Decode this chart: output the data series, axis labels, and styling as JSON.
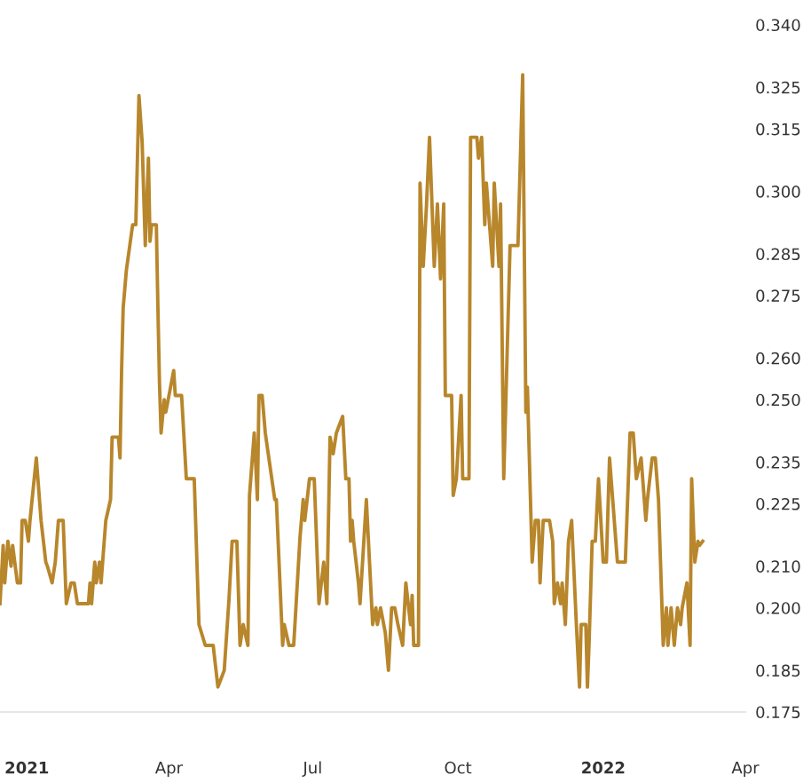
{
  "chart_data": {
    "type": "line",
    "color": "#b8862b",
    "grid": false,
    "marker": "none",
    "line_style": "solid",
    "x": [
      "2020-12-15",
      "2020-12-17",
      "2020-12-18",
      "2020-12-20",
      "2020-12-22",
      "2020-12-23",
      "2020-12-26",
      "2020-12-28",
      "2020-12-29",
      "2020-12-31",
      "2021-01-02",
      "2021-01-03",
      "2021-01-07",
      "2021-01-10",
      "2021-01-13",
      "2021-01-14",
      "2021-01-17",
      "2021-01-19",
      "2021-01-21",
      "2021-01-24",
      "2021-01-26",
      "2021-01-29",
      "2021-01-31",
      "2021-02-02",
      "2021-02-09",
      "2021-02-10",
      "2021-02-11",
      "2021-02-13",
      "2021-02-14",
      "2021-02-16",
      "2021-02-17",
      "2021-02-20",
      "2021-02-23",
      "2021-02-24",
      "2021-02-28",
      "2021-03-01",
      "2021-03-02",
      "2021-03-03",
      "2021-03-05",
      "2021-03-09",
      "2021-03-11",
      "2021-03-13",
      "2021-03-15",
      "2021-03-17",
      "2021-03-19",
      "2021-03-20",
      "2021-03-21",
      "2021-03-24",
      "2021-03-25",
      "2021-03-26",
      "2021-03-27",
      "2021-03-29",
      "2021-03-30",
      "2021-04-01",
      "2021-04-04",
      "2021-04-05",
      "2021-04-09",
      "2021-04-12",
      "2021-04-17",
      "2021-04-20",
      "2021-04-24",
      "2021-04-29",
      "2021-05-02",
      "2021-05-06",
      "2021-05-09",
      "2021-05-11",
      "2021-05-14",
      "2021-05-16",
      "2021-05-18",
      "2021-05-21",
      "2021-05-22",
      "2021-05-25",
      "2021-05-27",
      "2021-05-28",
      "2021-05-30",
      "2021-06-01",
      "2021-06-07",
      "2021-06-08",
      "2021-06-12",
      "2021-06-13",
      "2021-06-16",
      "2021-06-19",
      "2021-06-23",
      "2021-06-25",
      "2021-06-26",
      "2021-06-29",
      "2021-07-02",
      "2021-07-05",
      "2021-07-08",
      "2021-07-10",
      "2021-07-12",
      "2021-07-14",
      "2021-07-16",
      "2021-07-20",
      "2021-07-22",
      "2021-07-24",
      "2021-07-25",
      "2021-07-26",
      "2021-07-27",
      "2021-07-30",
      "2021-07-31",
      "2021-08-04",
      "2021-08-06",
      "2021-08-08",
      "2021-08-10",
      "2021-08-11",
      "2021-08-13",
      "2021-08-16",
      "2021-08-18",
      "2021-08-20",
      "2021-08-22",
      "2021-08-24",
      "2021-08-27",
      "2021-08-29",
      "2021-09-01",
      "2021-09-02",
      "2021-09-03",
      "2021-09-06",
      "2021-09-07",
      "2021-09-09",
      "2021-09-11",
      "2021-09-13",
      "2021-09-16",
      "2021-09-18",
      "2021-09-20",
      "2021-09-22",
      "2021-09-23",
      "2021-09-27",
      "2021-09-28",
      "2021-09-30",
      "2021-10-03",
      "2021-10-04",
      "2021-10-06",
      "2021-10-08",
      "2021-10-09",
      "2021-10-13",
      "2021-10-14",
      "2021-10-16",
      "2021-10-18",
      "2021-10-19",
      "2021-10-21",
      "2021-10-23",
      "2021-10-24",
      "2021-10-27",
      "2021-10-28",
      "2021-10-30",
      "2021-11-03",
      "2021-11-08",
      "2021-11-11",
      "2021-11-13",
      "2021-11-14",
      "2021-11-17",
      "2021-11-19",
      "2021-11-21",
      "2021-11-22",
      "2021-11-24",
      "2021-11-28",
      "2021-11-30",
      "2021-12-01",
      "2021-12-03",
      "2021-12-05",
      "2021-12-06",
      "2021-12-08",
      "2021-12-10",
      "2021-12-12",
      "2021-12-15",
      "2021-12-17",
      "2021-12-18",
      "2021-12-21",
      "2021-12-22",
      "2021-12-23",
      "2021-12-25",
      "2021-12-27",
      "2021-12-29",
      "2022-01-01",
      "2022-01-03",
      "2022-01-05",
      "2022-01-07",
      "2022-01-10",
      "2022-01-15",
      "2022-01-18",
      "2022-01-20",
      "2022-01-22",
      "2022-01-25",
      "2022-01-28",
      "2022-01-29",
      "2022-02-01",
      "2022-02-03",
      "2022-02-05",
      "2022-02-08",
      "2022-02-10",
      "2022-02-11",
      "2022-02-13",
      "2022-02-15",
      "2022-02-17",
      "2022-02-19",
      "2022-02-20",
      "2022-02-23",
      "2022-02-25",
      "2022-02-26",
      "2022-02-28",
      "2022-03-02",
      "2022-03-03",
      "2022-03-05"
    ],
    "values": [
      0.201,
      0.215,
      0.206,
      0.216,
      0.21,
      0.215,
      0.206,
      0.206,
      0.221,
      0.221,
      0.216,
      0.221,
      0.236,
      0.221,
      0.211,
      0.21,
      0.206,
      0.211,
      0.221,
      0.221,
      0.201,
      0.206,
      0.206,
      0.201,
      0.201,
      0.206,
      0.201,
      0.211,
      0.206,
      0.211,
      0.206,
      0.221,
      0.226,
      0.241,
      0.241,
      0.236,
      0.257,
      0.272,
      0.281,
      0.292,
      0.292,
      0.323,
      0.312,
      0.287,
      0.308,
      0.288,
      0.292,
      0.292,
      0.272,
      0.254,
      0.242,
      0.25,
      0.247,
      0.251,
      0.257,
      0.251,
      0.251,
      0.231,
      0.231,
      0.196,
      0.191,
      0.191,
      0.181,
      0.185,
      0.202,
      0.216,
      0.216,
      0.191,
      0.196,
      0.191,
      0.227,
      0.242,
      0.226,
      0.251,
      0.251,
      0.242,
      0.226,
      0.226,
      0.191,
      0.196,
      0.191,
      0.191,
      0.217,
      0.226,
      0.221,
      0.231,
      0.231,
      0.201,
      0.211,
      0.201,
      0.241,
      0.237,
      0.242,
      0.246,
      0.231,
      0.231,
      0.216,
      0.221,
      0.216,
      0.206,
      0.201,
      0.226,
      0.211,
      0.196,
      0.2,
      0.196,
      0.2,
      0.194,
      0.185,
      0.2,
      0.2,
      0.196,
      0.191,
      0.206,
      0.196,
      0.203,
      0.191,
      0.191,
      0.302,
      0.282,
      0.296,
      0.313,
      0.282,
      0.297,
      0.279,
      0.297,
      0.251,
      0.251,
      0.227,
      0.231,
      0.251,
      0.231,
      0.231,
      0.231,
      0.313,
      0.313,
      0.308,
      0.313,
      0.292,
      0.302,
      0.292,
      0.282,
      0.302,
      0.282,
      0.297,
      0.231,
      0.287,
      0.287,
      0.328,
      0.247,
      0.253,
      0.211,
      0.221,
      0.221,
      0.206,
      0.221,
      0.221,
      0.216,
      0.201,
      0.206,
      0.201,
      0.206,
      0.196,
      0.216,
      0.221,
      0.196,
      0.181,
      0.196,
      0.196,
      0.181,
      0.191,
      0.216,
      0.216,
      0.231,
      0.211,
      0.211,
      0.236,
      0.226,
      0.211,
      0.211,
      0.242,
      0.242,
      0.231,
      0.236,
      0.221,
      0.226,
      0.236,
      0.236,
      0.226,
      0.191,
      0.2,
      0.191,
      0.2,
      0.191,
      0.2,
      0.196,
      0.2,
      0.206,
      0.191,
      0.231,
      0.211,
      0.216,
      0.215,
      0.216
    ],
    "xlim": [
      "2020-12-15",
      "2022-04-01"
    ],
    "xticks": [
      {
        "value": "2021-01-01",
        "label": "2021"
      },
      {
        "value": "2021-04-01",
        "label": "Apr"
      },
      {
        "value": "2021-07-01",
        "label": "Jul"
      },
      {
        "value": "2021-10-01",
        "label": "Oct"
      },
      {
        "value": "2022-01-01",
        "label": "2022"
      },
      {
        "value": "2022-04-01",
        "label": "Apr"
      }
    ],
    "ylim": [
      0.175,
      0.34
    ],
    "yticks": [
      0.175,
      0.185,
      {
        "value": 0.2,
        "label": "0.200"
      },
      {
        "value": 0.21,
        "label": "0.210"
      },
      0.225,
      0.235,
      {
        "value": 0.25,
        "label": "0.250"
      },
      {
        "value": 0.26,
        "label": "0.260"
      },
      0.275,
      0.285,
      {
        "value": 0.3,
        "label": "0.300"
      },
      0.315,
      0.325,
      {
        "value": 0.34,
        "label": "0.340"
      }
    ]
  }
}
